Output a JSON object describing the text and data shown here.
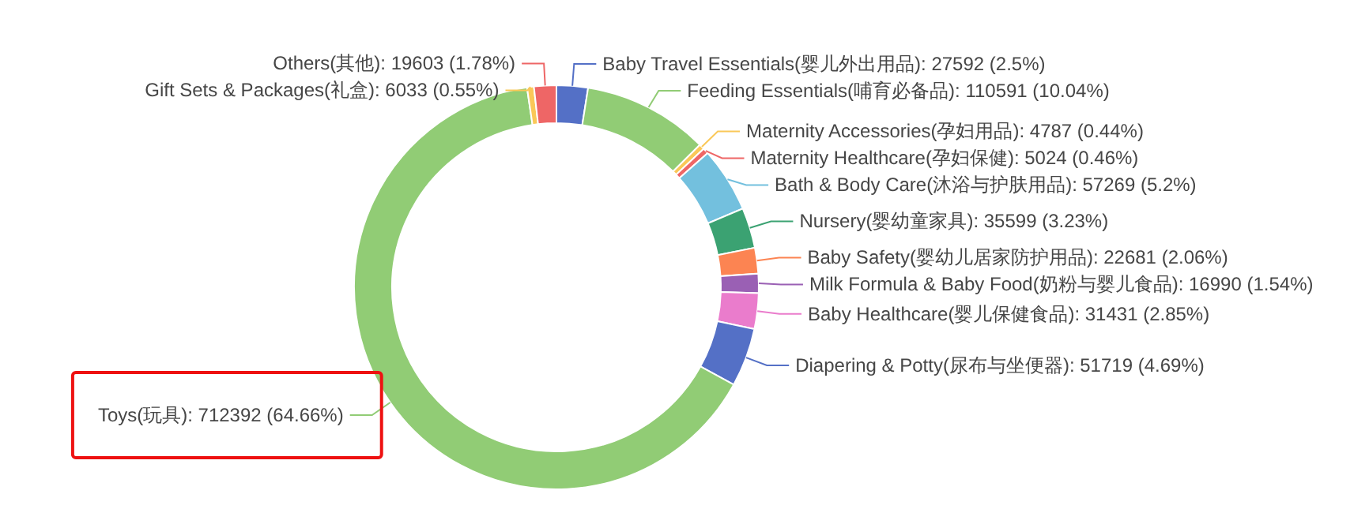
{
  "chart_data": {
    "type": "donut",
    "categories": [
      "Baby Travel Essentials(婴儿外出用品)",
      "Feeding Essentials(哺育必备品)",
      "Maternity Accessories(孕妇用品)",
      "Maternity Healthcare(孕妇保健)",
      "Bath & Body Care(沐浴与护肤用品)",
      "Nursery(婴幼童家具)",
      "Baby Safety(婴幼儿居家防护用品)",
      "Milk Formula & Baby Food(奶粉与婴儿食品)",
      "Baby Healthcare(婴儿保健食品)",
      "Diapering & Potty(尿布与坐便器)",
      "Toys(玩具)",
      "Gift Sets & Packages(礼盒)",
      "Others(其他)"
    ],
    "values": [
      27592,
      110591,
      4787,
      5024,
      57269,
      35599,
      22681,
      16990,
      31431,
      51719,
      712392,
      6033,
      19603
    ],
    "value_labels": [
      "27592 (2.5%)",
      "110591 (10.04%)",
      "4787 (0.44%)",
      "5024 (0.46%)",
      "57269 (5.2%)",
      "35599 (3.23%)",
      "22681 (2.06%)",
      "16990 (1.54%)",
      "31431 (2.85%)",
      "51719 (4.69%)",
      "712392 (64.66%)",
      "6033 (0.55%)",
      "19603 (1.78%)"
    ],
    "colors": [
      "#5470c6",
      "#91cc75",
      "#fac858",
      "#ee6666",
      "#73c0de",
      "#3ba272",
      "#fc8452",
      "#9a60b4",
      "#ea7ccc",
      "#5470c6",
      "#91cc75",
      "#fac858",
      "#ee6666"
    ]
  }
}
